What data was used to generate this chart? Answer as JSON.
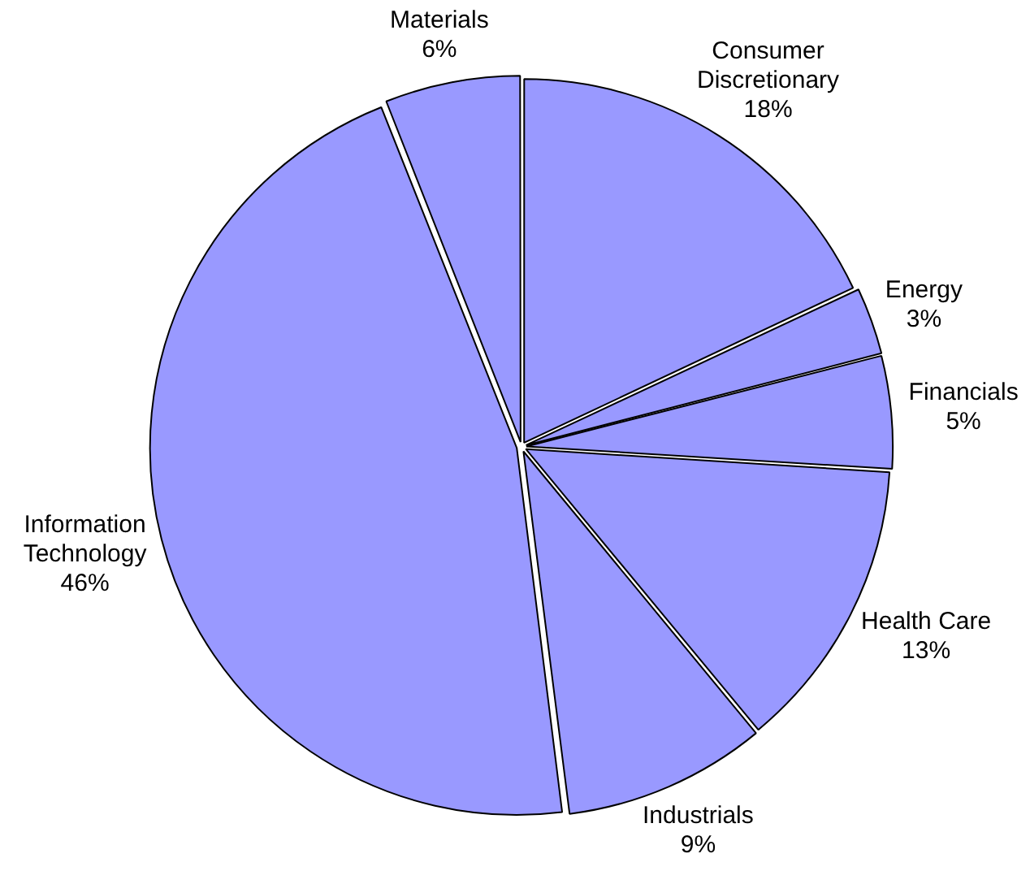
{
  "chart_data": {
    "type": "pie",
    "categories": [
      "Consumer Discretionary",
      "Energy",
      "Financials",
      "Health Care",
      "Industrials",
      "Information Technology",
      "Materials"
    ],
    "values": [
      18,
      3,
      5,
      13,
      9,
      46,
      6
    ],
    "value_labels": [
      "18%",
      "3%",
      "5%",
      "13%",
      "9%",
      "46%",
      "6%"
    ],
    "colors": [
      "#9999ff",
      "#9999ff",
      "#9999ff",
      "#9999ff",
      "#9999ff",
      "#9999ff",
      "#9999ff"
    ],
    "legend": false
  }
}
